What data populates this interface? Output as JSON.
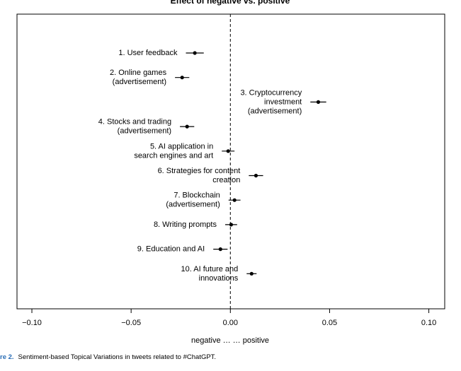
{
  "chart_data": {
    "type": "dot",
    "title": "Effect of negative vs. positive",
    "x_label": "negative  … …  positive",
    "figure_label": "re 2.",
    "caption": "Sentiment-based Topical Variations in tweets related to #ChatGPT.",
    "categories": [
      "1. User feedback",
      "2. Online games\n(advertisement)",
      "3. Cryptocurrency\ninvestment\n(advertisement)",
      "4. Stocks and trading\n(advertisement)",
      "5. AI application in\nsearch engines and art",
      "6. Strategies for content\ncreation",
      "7. Blockchain\n(advertisement)",
      "8. Writing prompts",
      "9. Education and AI",
      "10. AI future and\ninnovations"
    ],
    "values": [
      -0.0179,
      -0.0243,
      0.0443,
      -0.0218,
      -0.0011,
      0.0129,
      0.0021,
      0.0004,
      -0.005,
      0.0107
    ],
    "errors": [
      0.0045,
      0.0036,
      0.004,
      0.0036,
      0.0032,
      0.0036,
      0.003,
      0.003,
      0.0036,
      0.0025
    ],
    "color": "#000000",
    "reference_line": 0,
    "xlim": [
      -0.1075,
      0.108
    ],
    "xticks": [
      {
        "value": -0.1,
        "label": "−0.10"
      },
      {
        "value": -0.05,
        "label": "−0.05"
      },
      {
        "value": 0,
        "label": "0.00"
      },
      {
        "value": 0.05,
        "label": "0.05"
      },
      {
        "value": 0.1,
        "label": "0.10"
      }
    ]
  }
}
